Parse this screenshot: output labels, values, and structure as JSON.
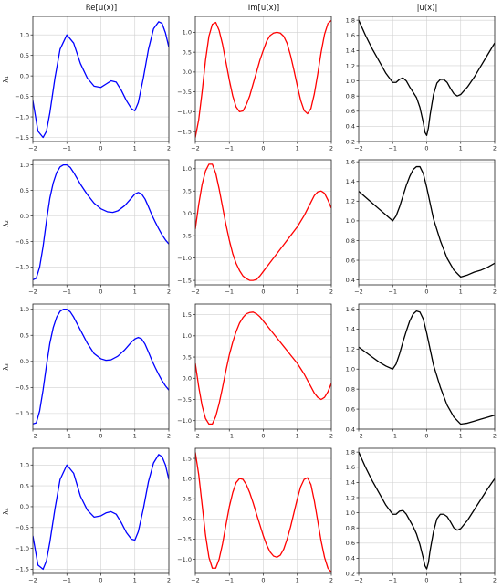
{
  "column_titles": [
    "Re[u(x)]",
    "Im[u(x)]",
    "|u(x)|"
  ],
  "row_labels": [
    "λ₁",
    "λ₂",
    "λ₃",
    "λ₄"
  ],
  "colors": {
    "re": "#0000ff",
    "im": "#ff0000",
    "abs": "#000000",
    "grid": "#d0d0d0"
  },
  "chart_data": [
    {
      "type": "line",
      "row": 0,
      "col": 0,
      "color": "#0000ff",
      "grid": true,
      "xlim": [
        -2,
        2
      ],
      "ylim": [
        -1.6,
        1.45
      ],
      "xticks": [
        -2,
        -1,
        0,
        1,
        2
      ],
      "yticks": [
        -1.5,
        -1.0,
        -0.5,
        0.0,
        0.5,
        1.0
      ],
      "x": [
        -2,
        -1.85,
        -1.7,
        -1.6,
        -1.5,
        -1.35,
        -1.2,
        -1.0,
        -0.8,
        -0.6,
        -0.4,
        -0.2,
        0.0,
        0.15,
        0.3,
        0.45,
        0.6,
        0.75,
        0.9,
        1.0,
        1.1,
        1.25,
        1.4,
        1.55,
        1.7,
        1.8,
        1.9,
        2.0
      ],
      "y": [
        -0.6,
        -1.35,
        -1.5,
        -1.35,
        -0.9,
        -0.05,
        0.65,
        1.0,
        0.8,
        0.3,
        -0.05,
        -0.25,
        -0.28,
        -0.2,
        -0.12,
        -0.15,
        -0.35,
        -0.6,
        -0.8,
        -0.85,
        -0.65,
        -0.05,
        0.65,
        1.15,
        1.32,
        1.28,
        1.05,
        0.7
      ]
    },
    {
      "type": "line",
      "row": 0,
      "col": 1,
      "color": "#ff0000",
      "grid": true,
      "xlim": [
        -2,
        2
      ],
      "ylim": [
        -1.75,
        1.4
      ],
      "xticks": [
        -2,
        -1,
        0,
        1,
        2
      ],
      "yticks": [
        -1.5,
        -1.0,
        -0.5,
        0.0,
        0.5,
        1.0
      ],
      "x": [
        -2,
        -1.9,
        -1.8,
        -1.7,
        -1.6,
        -1.5,
        -1.4,
        -1.3,
        -1.2,
        -1.1,
        -1.0,
        -0.9,
        -0.8,
        -0.7,
        -0.6,
        -0.5,
        -0.4,
        -0.3,
        -0.2,
        -0.1,
        0.0,
        0.1,
        0.2,
        0.3,
        0.4,
        0.5,
        0.6,
        0.7,
        0.8,
        0.9,
        1.0,
        1.1,
        1.2,
        1.3,
        1.4,
        1.5,
        1.6,
        1.7,
        1.8,
        1.9,
        2.0
      ],
      "y": [
        -1.65,
        -1.2,
        -0.5,
        0.3,
        0.9,
        1.2,
        1.25,
        1.05,
        0.7,
        0.25,
        -0.2,
        -0.6,
        -0.88,
        -1.0,
        -0.98,
        -0.82,
        -0.6,
        -0.3,
        0.0,
        0.3,
        0.55,
        0.78,
        0.92,
        0.98,
        1.0,
        0.98,
        0.9,
        0.72,
        0.42,
        0.05,
        -0.35,
        -0.72,
        -0.97,
        -1.05,
        -0.92,
        -0.55,
        -0.05,
        0.5,
        0.95,
        1.22,
        1.3
      ]
    },
    {
      "type": "line",
      "row": 0,
      "col": 2,
      "color": "#000000",
      "grid": true,
      "xlim": [
        -2,
        2
      ],
      "ylim": [
        0.2,
        1.85
      ],
      "xticks": [
        -2,
        -1,
        0,
        1,
        2
      ],
      "yticks": [
        0.2,
        0.4,
        0.6,
        0.8,
        1.0,
        1.2,
        1.4,
        1.6,
        1.8
      ],
      "x": [
        -2,
        -1.8,
        -1.6,
        -1.4,
        -1.2,
        -1.0,
        -0.9,
        -0.8,
        -0.7,
        -0.6,
        -0.5,
        -0.4,
        -0.3,
        -0.2,
        -0.1,
        -0.05,
        0.0,
        0.05,
        0.1,
        0.2,
        0.3,
        0.4,
        0.5,
        0.6,
        0.7,
        0.8,
        0.9,
        1.0,
        1.2,
        1.4,
        1.6,
        1.8,
        2.0
      ],
      "y": [
        1.8,
        1.6,
        1.42,
        1.26,
        1.1,
        0.98,
        0.98,
        1.02,
        1.04,
        1.0,
        0.92,
        0.85,
        0.78,
        0.65,
        0.45,
        0.32,
        0.28,
        0.38,
        0.55,
        0.82,
        0.97,
        1.02,
        1.02,
        0.98,
        0.9,
        0.83,
        0.8,
        0.82,
        0.92,
        1.05,
        1.2,
        1.35,
        1.5
      ]
    },
    {
      "type": "line",
      "row": 1,
      "col": 0,
      "color": "#0000ff",
      "grid": true,
      "xlim": [
        -2,
        2
      ],
      "ylim": [
        -1.35,
        1.1
      ],
      "xticks": [
        -2,
        -1,
        0,
        1,
        2
      ],
      "yticks": [
        -1.0,
        -0.5,
        0.0,
        0.5,
        1.0
      ],
      "x": [
        -2,
        -1.9,
        -1.8,
        -1.7,
        -1.6,
        -1.5,
        -1.4,
        -1.3,
        -1.2,
        -1.1,
        -1.0,
        -0.9,
        -0.8,
        -0.6,
        -0.4,
        -0.2,
        0.0,
        0.2,
        0.35,
        0.5,
        0.7,
        0.9,
        1.0,
        1.1,
        1.2,
        1.3,
        1.4,
        1.5,
        1.6,
        1.7,
        1.8,
        1.9,
        2.0
      ],
      "y": [
        -1.25,
        -1.22,
        -1.0,
        -0.6,
        -0.1,
        0.35,
        0.65,
        0.85,
        0.96,
        1.0,
        1.0,
        0.95,
        0.85,
        0.62,
        0.42,
        0.25,
        0.14,
        0.08,
        0.07,
        0.1,
        0.2,
        0.35,
        0.43,
        0.46,
        0.43,
        0.33,
        0.18,
        0.02,
        -0.12,
        -0.25,
        -0.37,
        -0.47,
        -0.55
      ]
    },
    {
      "type": "line",
      "row": 1,
      "col": 1,
      "color": "#ff0000",
      "grid": true,
      "xlim": [
        -2,
        2
      ],
      "ylim": [
        -1.6,
        1.2
      ],
      "xticks": [
        -2,
        -1,
        0,
        1,
        2
      ],
      "yticks": [
        -1.5,
        -1.0,
        -0.5,
        0.0,
        0.5,
        1.0
      ],
      "x": [
        -2,
        -1.9,
        -1.8,
        -1.7,
        -1.6,
        -1.5,
        -1.4,
        -1.3,
        -1.2,
        -1.1,
        -1.0,
        -0.9,
        -0.8,
        -0.7,
        -0.6,
        -0.5,
        -0.4,
        -0.3,
        -0.2,
        -0.1,
        0.0,
        0.2,
        0.4,
        0.6,
        0.8,
        1.0,
        1.2,
        1.4,
        1.5,
        1.6,
        1.7,
        1.8,
        1.9,
        2.0
      ],
      "y": [
        -0.35,
        0.2,
        0.65,
        0.95,
        1.1,
        1.1,
        0.9,
        0.55,
        0.15,
        -0.25,
        -0.6,
        -0.9,
        -1.12,
        -1.28,
        -1.4,
        -1.46,
        -1.5,
        -1.5,
        -1.48,
        -1.4,
        -1.3,
        -1.1,
        -0.9,
        -0.7,
        -0.5,
        -0.3,
        -0.05,
        0.25,
        0.4,
        0.48,
        0.5,
        0.45,
        0.3,
        0.12
      ]
    },
    {
      "type": "line",
      "row": 1,
      "col": 2,
      "color": "#000000",
      "grid": true,
      "xlim": [
        -2,
        2
      ],
      "ylim": [
        0.35,
        1.62
      ],
      "xticks": [
        -2,
        -1,
        0,
        1,
        2
      ],
      "yticks": [
        0.4,
        0.6,
        0.8,
        1.0,
        1.2,
        1.4,
        1.6
      ],
      "x": [
        -2,
        -1.8,
        -1.6,
        -1.4,
        -1.2,
        -1.0,
        -0.9,
        -0.8,
        -0.7,
        -0.6,
        -0.5,
        -0.4,
        -0.3,
        -0.2,
        -0.1,
        0.0,
        0.1,
        0.2,
        0.4,
        0.6,
        0.8,
        1.0,
        1.2,
        1.4,
        1.6,
        1.8,
        2.0
      ],
      "y": [
        1.3,
        1.24,
        1.18,
        1.12,
        1.06,
        1.0,
        1.05,
        1.14,
        1.25,
        1.36,
        1.45,
        1.52,
        1.55,
        1.55,
        1.48,
        1.34,
        1.18,
        1.02,
        0.8,
        0.62,
        0.5,
        0.43,
        0.45,
        0.48,
        0.5,
        0.53,
        0.57
      ]
    },
    {
      "type": "line",
      "row": 2,
      "col": 0,
      "color": "#0000ff",
      "grid": true,
      "xlim": [
        -2,
        2
      ],
      "ylim": [
        -1.3,
        1.1
      ],
      "xticks": [
        -2,
        -1,
        0,
        1,
        2
      ],
      "yticks": [
        -1.0,
        -0.5,
        0.0,
        0.5,
        1.0
      ],
      "x": [
        -2,
        -1.9,
        -1.8,
        -1.7,
        -1.6,
        -1.5,
        -1.4,
        -1.3,
        -1.2,
        -1.1,
        -1.0,
        -0.9,
        -0.8,
        -0.6,
        -0.4,
        -0.2,
        0.0,
        0.15,
        0.3,
        0.5,
        0.7,
        0.9,
        1.0,
        1.1,
        1.2,
        1.3,
        1.4,
        1.5,
        1.6,
        1.7,
        1.8,
        1.9,
        2.0
      ],
      "y": [
        -1.2,
        -1.18,
        -0.95,
        -0.55,
        -0.08,
        0.35,
        0.65,
        0.85,
        0.96,
        1.0,
        1.0,
        0.95,
        0.85,
        0.6,
        0.35,
        0.15,
        0.05,
        0.02,
        0.03,
        0.1,
        0.22,
        0.37,
        0.43,
        0.46,
        0.43,
        0.33,
        0.18,
        0.02,
        -0.12,
        -0.25,
        -0.37,
        -0.47,
        -0.55
      ]
    },
    {
      "type": "line",
      "row": 2,
      "col": 1,
      "color": "#ff0000",
      "grid": true,
      "xlim": [
        -2,
        2
      ],
      "ylim": [
        -1.2,
        1.75
      ],
      "xticks": [
        -2,
        -1,
        0,
        1,
        2
      ],
      "yticks": [
        -1.0,
        -0.5,
        0.0,
        0.5,
        1.0,
        1.5
      ],
      "x": [
        -2,
        -1.9,
        -1.8,
        -1.7,
        -1.6,
        -1.5,
        -1.4,
        -1.3,
        -1.2,
        -1.1,
        -1.0,
        -0.9,
        -0.8,
        -0.7,
        -0.6,
        -0.5,
        -0.4,
        -0.3,
        -0.2,
        -0.1,
        0.0,
        0.2,
        0.4,
        0.6,
        0.8,
        1.0,
        1.2,
        1.4,
        1.5,
        1.6,
        1.7,
        1.8,
        1.9,
        2.0
      ],
      "y": [
        0.35,
        -0.2,
        -0.65,
        -0.95,
        -1.08,
        -1.08,
        -0.9,
        -0.6,
        -0.22,
        0.18,
        0.55,
        0.85,
        1.1,
        1.3,
        1.43,
        1.52,
        1.55,
        1.56,
        1.52,
        1.45,
        1.35,
        1.15,
        0.95,
        0.75,
        0.55,
        0.35,
        0.1,
        -0.2,
        -0.35,
        -0.45,
        -0.5,
        -0.45,
        -0.32,
        -0.12
      ]
    },
    {
      "type": "line",
      "row": 2,
      "col": 2,
      "color": "#000000",
      "grid": true,
      "xlim": [
        -2,
        2
      ],
      "ylim": [
        0.4,
        1.65
      ],
      "xticks": [
        -2,
        -1,
        0,
        1,
        2
      ],
      "yticks": [
        0.4,
        0.6,
        0.8,
        1.0,
        1.2,
        1.4,
        1.6
      ],
      "x": [
        -2,
        -1.8,
        -1.6,
        -1.4,
        -1.2,
        -1.0,
        -0.9,
        -0.8,
        -0.7,
        -0.6,
        -0.5,
        -0.4,
        -0.3,
        -0.2,
        -0.1,
        0.0,
        0.1,
        0.2,
        0.4,
        0.6,
        0.8,
        1.0,
        1.2,
        1.4,
        1.6,
        1.8,
        2.0
      ],
      "y": [
        1.22,
        1.17,
        1.12,
        1.07,
        1.03,
        1.0,
        1.05,
        1.15,
        1.27,
        1.38,
        1.48,
        1.55,
        1.58,
        1.57,
        1.5,
        1.36,
        1.2,
        1.04,
        0.82,
        0.64,
        0.52,
        0.45,
        0.46,
        0.48,
        0.5,
        0.52,
        0.54
      ]
    },
    {
      "type": "line",
      "row": 3,
      "col": 0,
      "color": "#0000ff",
      "grid": true,
      "xlim": [
        -2,
        2
      ],
      "ylim": [
        -1.6,
        1.4
      ],
      "xticks": [
        -2,
        -1,
        0,
        1,
        2
      ],
      "yticks": [
        -1.5,
        -1.0,
        -0.5,
        0.0,
        0.5,
        1.0
      ],
      "x": [
        -2,
        -1.85,
        -1.7,
        -1.6,
        -1.5,
        -1.35,
        -1.2,
        -1.0,
        -0.8,
        -0.6,
        -0.4,
        -0.2,
        0.0,
        0.15,
        0.3,
        0.45,
        0.6,
        0.75,
        0.9,
        1.0,
        1.1,
        1.25,
        1.4,
        1.55,
        1.7,
        1.8,
        1.9,
        2.0
      ],
      "y": [
        -0.7,
        -1.4,
        -1.5,
        -1.3,
        -0.85,
        -0.05,
        0.65,
        1.0,
        0.8,
        0.25,
        -0.08,
        -0.25,
        -0.22,
        -0.15,
        -0.12,
        -0.18,
        -0.38,
        -0.62,
        -0.78,
        -0.8,
        -0.6,
        -0.05,
        0.6,
        1.05,
        1.25,
        1.2,
        1.0,
        0.65
      ]
    },
    {
      "type": "line",
      "row": 3,
      "col": 1,
      "color": "#ff0000",
      "grid": true,
      "xlim": [
        -2,
        2
      ],
      "ylim": [
        -1.35,
        1.75
      ],
      "xticks": [
        -2,
        -1,
        0,
        1,
        2
      ],
      "yticks": [
        -1.0,
        -0.5,
        0.0,
        0.5,
        1.0,
        1.5
      ],
      "x": [
        -2,
        -1.9,
        -1.8,
        -1.7,
        -1.6,
        -1.5,
        -1.4,
        -1.3,
        -1.2,
        -1.1,
        -1.0,
        -0.9,
        -0.8,
        -0.7,
        -0.6,
        -0.5,
        -0.4,
        -0.3,
        -0.2,
        -0.1,
        0.0,
        0.1,
        0.2,
        0.3,
        0.4,
        0.5,
        0.6,
        0.7,
        0.8,
        0.9,
        1.0,
        1.1,
        1.2,
        1.3,
        1.4,
        1.5,
        1.6,
        1.7,
        1.8,
        1.9,
        2.0
      ],
      "y": [
        1.65,
        1.1,
        0.35,
        -0.4,
        -0.95,
        -1.22,
        -1.22,
        -1.0,
        -0.62,
        -0.15,
        0.3,
        0.65,
        0.9,
        1.0,
        0.98,
        0.85,
        0.65,
        0.4,
        0.12,
        -0.15,
        -0.42,
        -0.65,
        -0.82,
        -0.92,
        -0.95,
        -0.9,
        -0.75,
        -0.5,
        -0.2,
        0.15,
        0.5,
        0.8,
        0.98,
        1.02,
        0.85,
        0.45,
        -0.05,
        -0.55,
        -0.95,
        -1.22,
        -1.32
      ]
    },
    {
      "type": "line",
      "row": 3,
      "col": 2,
      "color": "#000000",
      "grid": true,
      "xlim": [
        -2,
        2
      ],
      "ylim": [
        0.2,
        1.85
      ],
      "xticks": [
        -2,
        -1,
        0,
        1,
        2
      ],
      "yticks": [
        0.2,
        0.4,
        0.6,
        0.8,
        1.0,
        1.2,
        1.4,
        1.6,
        1.8
      ],
      "x": [
        -2,
        -1.8,
        -1.6,
        -1.4,
        -1.2,
        -1.0,
        -0.9,
        -0.8,
        -0.7,
        -0.6,
        -0.5,
        -0.4,
        -0.3,
        -0.2,
        -0.1,
        -0.05,
        0.0,
        0.05,
        0.1,
        0.2,
        0.3,
        0.4,
        0.5,
        0.6,
        0.7,
        0.8,
        0.9,
        1.0,
        1.2,
        1.4,
        1.6,
        1.8,
        2.0
      ],
      "y": [
        1.8,
        1.6,
        1.42,
        1.26,
        1.1,
        0.98,
        0.98,
        1.02,
        1.03,
        0.98,
        0.9,
        0.82,
        0.72,
        0.58,
        0.4,
        0.3,
        0.26,
        0.34,
        0.5,
        0.75,
        0.92,
        0.98,
        0.98,
        0.95,
        0.88,
        0.8,
        0.77,
        0.79,
        0.9,
        1.04,
        1.18,
        1.32,
        1.45
      ]
    }
  ]
}
